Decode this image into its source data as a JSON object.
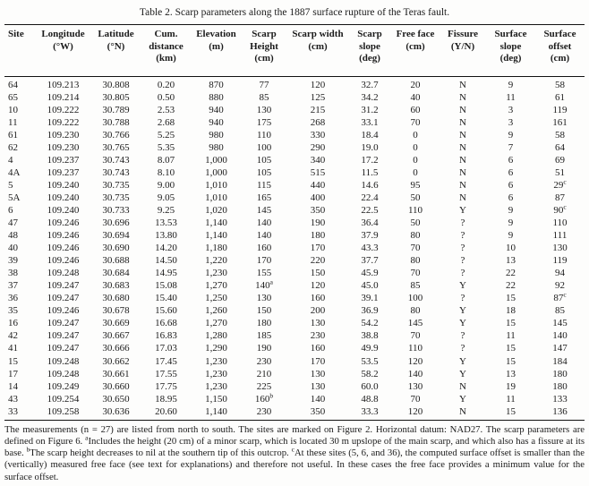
{
  "title": "Table 2. Scarp parameters along the 1887 surface rupture of the Teras fault.",
  "table": {
    "columns": [
      {
        "id": "site",
        "lines": [
          "Site"
        ]
      },
      {
        "id": "longitude",
        "lines": [
          "Longitude",
          "(°W)"
        ]
      },
      {
        "id": "latitude",
        "lines": [
          "Latitude",
          "(°N)"
        ]
      },
      {
        "id": "cum-distance",
        "lines": [
          "Cum.",
          "distance",
          "(km)"
        ]
      },
      {
        "id": "elevation",
        "lines": [
          "Elevation",
          "(m)"
        ]
      },
      {
        "id": "scarp-height",
        "lines": [
          "Scarp",
          "Height",
          "(cm)"
        ]
      },
      {
        "id": "scarp-width",
        "lines": [
          "Scarp width",
          "(cm)"
        ]
      },
      {
        "id": "scarp-slope",
        "lines": [
          "Scarp",
          "slope",
          "(deg)"
        ]
      },
      {
        "id": "free-face",
        "lines": [
          "Free face",
          "(cm)"
        ]
      },
      {
        "id": "fissure",
        "lines": [
          "Fissure",
          "(Y/N)"
        ]
      },
      {
        "id": "surface-slope",
        "lines": [
          "Surface",
          "slope",
          "(deg)"
        ]
      },
      {
        "id": "surface-offset",
        "lines": [
          "Surface",
          "offset",
          "(cm)"
        ]
      }
    ],
    "rows": [
      [
        "64",
        "109.213",
        "30.808",
        "0.20",
        "870",
        "77",
        "120",
        "32.7",
        "20",
        "N",
        "9",
        "58"
      ],
      [
        "65",
        "109.214",
        "30.805",
        "0.50",
        "880",
        "85",
        "125",
        "34.2",
        "40",
        "N",
        "11",
        "61"
      ],
      [
        "10",
        "109.222",
        "30.789",
        "2.53",
        "940",
        "130",
        "215",
        "31.2",
        "60",
        "N",
        "3",
        "119"
      ],
      [
        "11",
        "109.222",
        "30.788",
        "2.68",
        "940",
        "175",
        "268",
        "33.1",
        "70",
        "N",
        "3",
        "161"
      ],
      [
        "61",
        "109.230",
        "30.766",
        "5.25",
        "980",
        "110",
        "330",
        "18.4",
        "0",
        "N",
        "9",
        "58"
      ],
      [
        "62",
        "109.230",
        "30.765",
        "5.35",
        "980",
        "100",
        "290",
        "19.0",
        "0",
        "N",
        "7",
        "64"
      ],
      [
        "4",
        "109.237",
        "30.743",
        "8.07",
        "1,000",
        "105",
        "340",
        "17.2",
        "0",
        "N",
        "6",
        "69"
      ],
      [
        "4A",
        "109.237",
        "30.743",
        "8.10",
        "1,000",
        "105",
        "515",
        "11.5",
        "0",
        "N",
        "6",
        "51"
      ],
      [
        "5",
        "109.240",
        "30.735",
        "9.00",
        "1,010",
        "115",
        "440",
        "14.6",
        "95",
        "N",
        "6",
        "29^c"
      ],
      [
        "5A",
        "109.240",
        "30.735",
        "9.05",
        "1,010",
        "165",
        "400",
        "22.4",
        "50",
        "N",
        "6",
        "87"
      ],
      [
        "6",
        "109.240",
        "30.733",
        "9.25",
        "1,020",
        "145",
        "350",
        "22.5",
        "110",
        "Y",
        "9",
        "90^c"
      ],
      [
        "47",
        "109.246",
        "30.696",
        "13.53",
        "1,140",
        "140",
        "190",
        "36.4",
        "50",
        "?",
        "9",
        "110"
      ],
      [
        "48",
        "109.246",
        "30.694",
        "13.80",
        "1,140",
        "140",
        "180",
        "37.9",
        "80",
        "?",
        "9",
        "111"
      ],
      [
        "40",
        "109.246",
        "30.690",
        "14.20",
        "1,180",
        "160",
        "170",
        "43.3",
        "70",
        "?",
        "10",
        "130"
      ],
      [
        "39",
        "109.246",
        "30.688",
        "14.50",
        "1,220",
        "170",
        "220",
        "37.7",
        "80",
        "?",
        "13",
        "119"
      ],
      [
        "38",
        "109.248",
        "30.684",
        "14.95",
        "1,230",
        "155",
        "150",
        "45.9",
        "70",
        "?",
        "22",
        "94"
      ],
      [
        "37",
        "109.247",
        "30.683",
        "15.08",
        "1,270",
        "140^a",
        "120",
        "45.0",
        "85",
        "Y",
        "22",
        "92"
      ],
      [
        "36",
        "109.247",
        "30.680",
        "15.40",
        "1,250",
        "130",
        "160",
        "39.1",
        "100",
        "?",
        "15",
        "87^c"
      ],
      [
        "35",
        "109.246",
        "30.678",
        "15.60",
        "1,260",
        "150",
        "200",
        "36.9",
        "80",
        "Y",
        "18",
        "85"
      ],
      [
        "16",
        "109.247",
        "30.669",
        "16.68",
        "1,270",
        "180",
        "130",
        "54.2",
        "145",
        "Y",
        "15",
        "145"
      ],
      [
        "42",
        "109.247",
        "30.667",
        "16.83",
        "1,280",
        "185",
        "230",
        "38.8",
        "70",
        "?",
        "11",
        "140"
      ],
      [
        "41",
        "109.247",
        "30.666",
        "17.03",
        "1,290",
        "190",
        "160",
        "49.9",
        "110",
        "?",
        "15",
        "147"
      ],
      [
        "15",
        "109.248",
        "30.662",
        "17.45",
        "1,230",
        "230",
        "170",
        "53.5",
        "120",
        "Y",
        "15",
        "184"
      ],
      [
        "17",
        "109.248",
        "30.661",
        "17.55",
        "1,230",
        "210",
        "130",
        "58.2",
        "140",
        "Y",
        "13",
        "180"
      ],
      [
        "14",
        "109.249",
        "30.660",
        "17.75",
        "1,230",
        "225",
        "130",
        "60.0",
        "130",
        "N",
        "19",
        "180"
      ],
      [
        "43",
        "109.254",
        "30.650",
        "18.95",
        "1,150",
        "160^b",
        "140",
        "48.8",
        "70",
        "Y",
        "11",
        "133"
      ],
      [
        "33",
        "109.258",
        "30.636",
        "20.60",
        "1,140",
        "230",
        "350",
        "33.3",
        "120",
        "N",
        "15",
        "136"
      ]
    ]
  },
  "footnotes": {
    "general": "The measurements (n = 27) are listed from north to south. The sites are marked on Figure 2. Horizontal datum: NAD27. The scarp parameters are defined on Figure 6.",
    "a": "Includes the height (20 cm) of a minor scarp, which is located 30 m upslope of the main scarp, and which also has a fissure at its base.",
    "b": "The scarp height decreases to nil at the southern tip of this outcrop.",
    "c": "At these sites (5, 6, and 36), the computed surface offset is smaller than the (vertically) measured free face (see text for explanations) and therefore not useful. In these cases the free face provides a minimum value for the surface offset."
  }
}
